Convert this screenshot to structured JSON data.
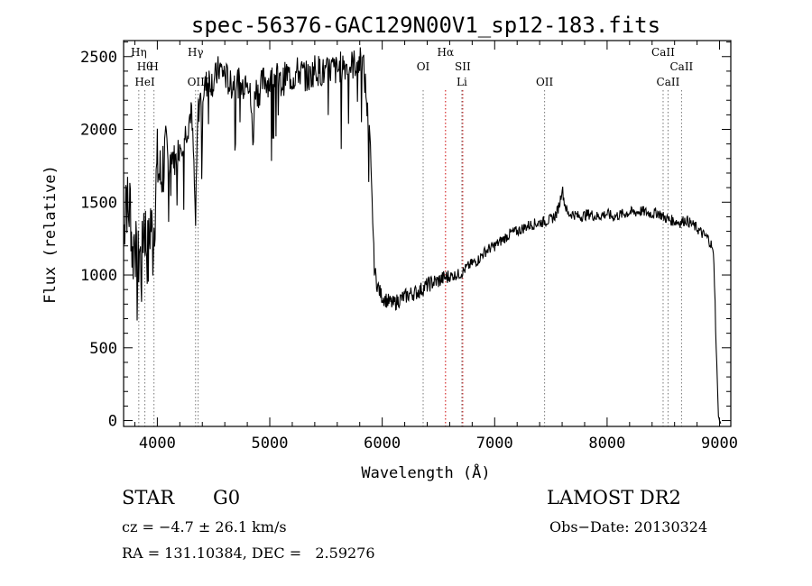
{
  "chart_data": {
    "type": "line",
    "title": "spec-56376-GAC129N00V1_sp12-183.fits",
    "xlabel": "Wavelength (Å)",
    "ylabel": "Flux (relative)",
    "xlim": [
      3700,
      9100
    ],
    "ylim": [
      -40,
      2610
    ],
    "xticks": [
      4000,
      5000,
      6000,
      7000,
      8000,
      9000
    ],
    "yticks": [
      0,
      500,
      1000,
      1500,
      2000,
      2500
    ],
    "xtick_labels": [
      "4000",
      "5000",
      "6000",
      "7000",
      "8000",
      "9000"
    ],
    "ytick_labels": [
      "0",
      "500",
      "1000",
      "1500",
      "2000",
      "2500"
    ],
    "grid": false,
    "series": [
      {
        "x": [
          3700,
          3720,
          3740,
          3760,
          3780,
          3800,
          3820,
          3840,
          3860,
          3880,
          3900,
          3920,
          3940,
          3960,
          3980,
          4000,
          4030,
          4060,
          4100,
          4130,
          4160,
          4200,
          4240,
          4280,
          4300,
          4320,
          4340,
          4360,
          4380,
          4400,
          4430,
          4460,
          4500,
          4550,
          4600,
          4650,
          4700,
          4750,
          4800,
          4830,
          4850,
          4870,
          4900,
          4950,
          5000,
          5050,
          5100,
          5150,
          5200,
          5250,
          5300,
          5350,
          5400,
          5450,
          5500,
          5550,
          5600,
          5650,
          5700,
          5750,
          5800,
          5830,
          5850,
          5870,
          5890,
          5910,
          5930,
          5950,
          5980,
          6000,
          6050,
          6100,
          6150,
          6200,
          6250,
          6300,
          6350,
          6400,
          6450,
          6500,
          6550,
          6600,
          6650,
          6700,
          6750,
          6800,
          6850,
          6900,
          6950,
          7000,
          7050,
          7100,
          7150,
          7200,
          7250,
          7300,
          7350,
          7400,
          7450,
          7500,
          7550,
          7580,
          7600,
          7620,
          7650,
          7700,
          7750,
          7800,
          7850,
          7900,
          7950,
          8000,
          8050,
          8100,
          8150,
          8200,
          8250,
          8300,
          8350,
          8400,
          8450,
          8500,
          8550,
          8600,
          8650,
          8700,
          8750,
          8800,
          8850,
          8900,
          8930,
          8950,
          8970,
          8990,
          9000,
          9010
        ],
        "y": [
          1200,
          1650,
          1400,
          1500,
          1100,
          1350,
          900,
          1200,
          1000,
          1400,
          1250,
          1100,
          1400,
          1200,
          1500,
          1750,
          1650,
          1800,
          1700,
          1850,
          1780,
          1900,
          1950,
          2050,
          2150,
          1850,
          1350,
          2100,
          2200,
          2250,
          2300,
          2350,
          2320,
          2420,
          2380,
          2300,
          2350,
          2280,
          2400,
          2200,
          1900,
          2300,
          2250,
          2350,
          2320,
          2380,
          2300,
          2380,
          2350,
          2400,
          2380,
          2350,
          2420,
          2400,
          2380,
          2420,
          2400,
          2450,
          2430,
          2450,
          2470,
          2450,
          2300,
          2100,
          1900,
          1500,
          1050,
          950,
          880,
          850,
          820,
          800,
          830,
          850,
          870,
          880,
          900,
          930,
          950,
          960,
          980,
          990,
          1000,
          1010,
          1050,
          1080,
          1100,
          1150,
          1180,
          1200,
          1230,
          1260,
          1290,
          1300,
          1320,
          1340,
          1350,
          1360,
          1370,
          1380,
          1420,
          1500,
          1600,
          1500,
          1420,
          1420,
          1400,
          1410,
          1420,
          1400,
          1410,
          1420,
          1400,
          1410,
          1420,
          1430,
          1430,
          1440,
          1430,
          1420,
          1430,
          1400,
          1380,
          1370,
          1360,
          1380,
          1350,
          1320,
          1280,
          1250,
          1200,
          1100,
          500,
          30,
          0,
          -20
        ]
      }
    ],
    "line_markers": [
      {
        "wave": 3835,
        "label": "Hη",
        "row": 1
      },
      {
        "wave": 3889,
        "label": "Hθ",
        "row": 2
      },
      {
        "wave": 3970,
        "label": "H",
        "row": 2
      },
      {
        "wave": 3889,
        "label": "HeI",
        "row": 3
      },
      {
        "wave": 4340,
        "label": "Hγ",
        "row": 1
      },
      {
        "wave": 4363,
        "label": "OIII",
        "row": 3
      },
      {
        "wave": 6364,
        "label": "OI",
        "row": 2
      },
      {
        "wave": 6563,
        "label": "Hα",
        "row": 1
      },
      {
        "wave": 6716,
        "label": "SII",
        "row": 2
      },
      {
        "wave": 6708,
        "label": "Li",
        "row": 3
      },
      {
        "wave": 7444,
        "label": "OII",
        "row": 3
      },
      {
        "wave": 8498,
        "label": "CaII",
        "row": 1
      },
      {
        "wave": 8662,
        "label": "CaII",
        "row": 2
      },
      {
        "wave": 8542,
        "label": "CaII",
        "row": 3
      }
    ],
    "marker_colors": {
      "gray": "#777777",
      "red": "#cc0000"
    },
    "red_marker_waves": [
      6563,
      6716
    ]
  },
  "info": {
    "class_label": "STAR",
    "subclass": "G0",
    "survey": "LAMOST DR2",
    "redshift": "cz = −4.7 ± 26.1 km/s",
    "obs_date": "Obs−Date: 20130324",
    "coords": "RA = 131.10384, DEC =   2.59276"
  }
}
